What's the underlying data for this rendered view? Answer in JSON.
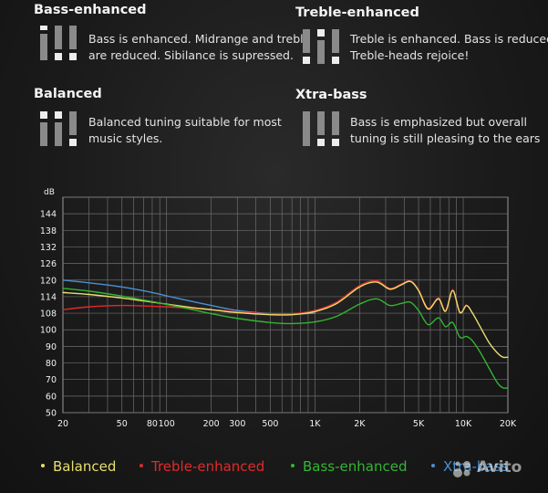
{
  "modes": [
    {
      "title": "Bass-enhanced",
      "desc": [
        "Bass is enhanced. Midrange and treble",
        "are reduced. Sibilance is supressed."
      ],
      "icon": "bass-enhanced-eq-icon"
    },
    {
      "title": "Treble-enhanced",
      "desc": [
        "Treble is enhanced. Bass is reduced.",
        "Treble-heads rejoice!"
      ],
      "icon": "treble-enhanced-eq-icon"
    },
    {
      "title": "Balanced",
      "desc": [
        "Balanced tuning suitable for most",
        "music styles."
      ],
      "icon": "balanced-eq-icon"
    },
    {
      "title": "Xtra-bass",
      "desc": [
        "Bass is emphasized but overall",
        "tuning is still pleasing to the ears"
      ],
      "icon": "xtra-bass-eq-icon"
    }
  ],
  "chart_data": {
    "type": "line",
    "ylabel": "dB",
    "xscale": "log",
    "xlim": [
      20,
      20000
    ],
    "ylim": [
      50,
      150
    ],
    "x_ticks": [
      20,
      50,
      80,
      100,
      200,
      300,
      500,
      1000,
      2000,
      5000,
      10000,
      20000
    ],
    "x_tick_labels": [
      "20",
      "50",
      "80",
      "100",
      "200",
      "300",
      "500",
      "1K",
      "2K",
      "5K",
      "10K",
      "20K"
    ],
    "y_ticks": [
      50,
      60,
      70,
      80,
      90,
      100,
      108,
      114,
      120,
      126,
      132,
      138,
      144
    ],
    "grid": true,
    "legend_position": "bottom",
    "series": [
      {
        "name": "Balanced",
        "color": "#e8df6e",
        "x": [
          20,
          30,
          50,
          80,
          100,
          150,
          200,
          300,
          500,
          700,
          1000,
          1400,
          2000,
          2600,
          3200,
          3800,
          4400,
          5000,
          5800,
          6800,
          7600,
          8500,
          9500,
          10500,
          11500,
          13000,
          15000,
          17000,
          18500,
          20000
        ],
        "y": [
          115.5,
          114.8,
          113.5,
          112,
          111.3,
          110,
          109.3,
          108.2,
          107.3,
          107.3,
          108.6,
          111.5,
          117.5,
          119.3,
          116.7,
          118.2,
          119.5,
          116.2,
          109.5,
          113.2,
          108.7,
          116.2,
          108.2,
          110.8,
          108.2,
          101.5,
          92,
          86,
          83.5,
          83.5
        ]
      },
      {
        "name": "Treble-enhanced",
        "color": "#e02a2a",
        "x": [
          20,
          30,
          50,
          80,
          100,
          150,
          200,
          300,
          500,
          700,
          1000,
          1400,
          2000,
          2600,
          3200,
          3800,
          4400,
          5000,
          5800,
          6800,
          7600,
          8500,
          9500,
          10500
        ],
        "y": [
          109.3,
          110.3,
          110.8,
          110.5,
          110.3,
          109.8,
          109.3,
          108.5,
          107.7,
          107.7,
          109,
          112,
          118,
          119.8,
          117,
          118.5,
          119.7,
          116.5,
          109.8,
          113.5,
          109,
          116.5,
          108.5,
          111
        ]
      },
      {
        "name": "Bass-enhanced",
        "color": "#33b533",
        "x": [
          20,
          30,
          50,
          80,
          100,
          150,
          200,
          300,
          500,
          700,
          1000,
          1400,
          2000,
          2600,
          3200,
          3800,
          4400,
          5000,
          5800,
          6800,
          7600,
          8500,
          9500,
          10500,
          11500,
          13000,
          15000,
          17000,
          18500,
          20000
        ],
        "y": [
          117,
          116,
          114.2,
          112.2,
          111.2,
          109.3,
          107.8,
          105.5,
          103.5,
          103,
          103.8,
          106.5,
          111.3,
          113.2,
          110.8,
          111.5,
          112,
          109,
          102.5,
          105.8,
          101.5,
          103.5,
          95.5,
          96,
          93.5,
          86.5,
          76.5,
          68,
          65,
          65
        ]
      },
      {
        "name": "Xtra-bass",
        "color": "#4a90d0",
        "x": [
          20,
          30,
          50,
          80,
          100,
          150,
          200,
          300,
          500,
          700,
          1000
        ],
        "y": [
          120,
          119,
          117.5,
          115.5,
          114.3,
          112.2,
          110.8,
          109,
          107.8,
          107.6,
          108
        ]
      }
    ]
  },
  "watermark": {
    "text": "Avito",
    "icon": "avito-logo-icon"
  }
}
